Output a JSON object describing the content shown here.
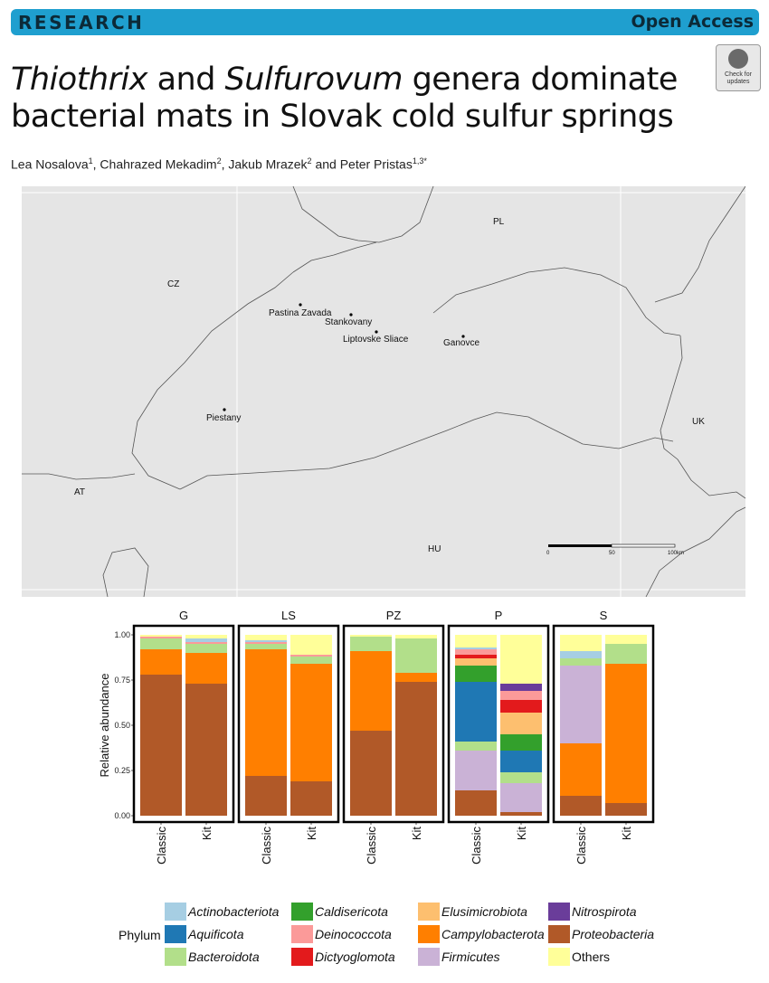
{
  "header": {
    "section_label": "RESEARCH",
    "access_label": "Open Access"
  },
  "paper": {
    "title_italic_1": "Thiothrix",
    "title_and": " and ",
    "title_italic_2": "Sulfurovum",
    "title_rest_1": " genera dominate",
    "title_rest_2": "bacterial mats in Slovak cold sulfur springs",
    "check_updates": "Check for updates",
    "authors": [
      {
        "name": "Lea Nosalova",
        "sup": "1",
        "sep": ", "
      },
      {
        "name": "Chahrazed Mekadim",
        "sup": "2",
        "sep": ", "
      },
      {
        "name": "Jakub Mrazek",
        "sup": "2",
        "sep": " and "
      },
      {
        "name": "Peter Pristas",
        "sup": "1,3*",
        "sep": ""
      }
    ]
  },
  "map": {
    "countries": [
      "PL",
      "CZ",
      "UK",
      "AT",
      "HU"
    ],
    "sites": [
      "Pastina Zavada",
      "Stankovany",
      "Liptovske Sliace",
      "Ganovce",
      "Piestany"
    ],
    "scale_labels": [
      "0",
      "50",
      "100km"
    ]
  },
  "chart_data": {
    "type": "bar",
    "stacked": true,
    "ylabel": "Relative abundance",
    "ylim": [
      0,
      1
    ],
    "yticks": [
      "0.00",
      "0.25",
      "0.50",
      "0.75",
      "1.00"
    ],
    "facets": [
      "G",
      "LS",
      "PZ",
      "P",
      "S"
    ],
    "categories": [
      "Classic",
      "Kit"
    ],
    "legend_title": "Phylum",
    "series": [
      {
        "name": "Proteobacteria",
        "color": "#b15928",
        "values": [
          [
            0.78,
            0.73
          ],
          [
            0.22,
            0.19
          ],
          [
            0.47,
            0.74
          ],
          [
            0.14,
            0.02
          ],
          [
            0.11,
            0.07
          ]
        ]
      },
      {
        "name": "Campylobacterota",
        "color": "#ff7f00",
        "values": [
          [
            0.14,
            0.17
          ],
          [
            0.7,
            0.65
          ],
          [
            0.44,
            0.05
          ],
          [
            0,
            0
          ],
          [
            0.29,
            0.77
          ]
        ]
      },
      {
        "name": "Firmicutes",
        "color": "#cab2d6",
        "values": [
          [
            0,
            0
          ],
          [
            0,
            0
          ],
          [
            0,
            0
          ],
          [
            0.22,
            0.16
          ],
          [
            0.43,
            0
          ]
        ]
      },
      {
        "name": "Bacteroidota",
        "color": "#b2df8a",
        "values": [
          [
            0.06,
            0.05
          ],
          [
            0.03,
            0.04
          ],
          [
            0.08,
            0.19
          ],
          [
            0.05,
            0.06
          ],
          [
            0.04,
            0.11
          ]
        ]
      },
      {
        "name": "Aquificota",
        "color": "#1f78b4",
        "values": [
          [
            0,
            0
          ],
          [
            0,
            0
          ],
          [
            0,
            0
          ],
          [
            0.33,
            0.12
          ],
          [
            0,
            0
          ]
        ]
      },
      {
        "name": "Caldisericota",
        "color": "#33a02c",
        "values": [
          [
            0,
            0
          ],
          [
            0,
            0
          ],
          [
            0,
            0
          ],
          [
            0.09,
            0.09
          ],
          [
            0,
            0
          ]
        ]
      },
      {
        "name": "Elusimicrobiota",
        "color": "#fdbf6f",
        "values": [
          [
            0,
            0
          ],
          [
            0,
            0
          ],
          [
            0,
            0
          ],
          [
            0.04,
            0.12
          ],
          [
            0,
            0
          ]
        ]
      },
      {
        "name": "Dictyoglomota",
        "color": "#e31a1c",
        "values": [
          [
            0,
            0
          ],
          [
            0,
            0
          ],
          [
            0,
            0
          ],
          [
            0.02,
            0.07
          ],
          [
            0,
            0
          ]
        ]
      },
      {
        "name": "Deinococcota",
        "color": "#fb9a99",
        "values": [
          [
            0.01,
            0.01
          ],
          [
            0.01,
            0.01
          ],
          [
            0,
            0
          ],
          [
            0.03,
            0.05
          ],
          [
            0,
            0
          ]
        ]
      },
      {
        "name": "Nitrospirota",
        "color": "#6a3d9a",
        "values": [
          [
            0,
            0
          ],
          [
            0,
            0
          ],
          [
            0,
            0
          ],
          [
            0,
            0.04
          ],
          [
            0,
            0
          ]
        ]
      },
      {
        "name": "Actinobacteriota",
        "color": "#a6cee3",
        "values": [
          [
            0,
            0.02
          ],
          [
            0.01,
            0
          ],
          [
            0,
            0
          ],
          [
            0.01,
            0
          ],
          [
            0.04,
            0
          ]
        ]
      },
      {
        "name": "Others",
        "color": "#ffff99",
        "values": [
          [
            0.01,
            0.02
          ],
          [
            0.03,
            0.11
          ],
          [
            0.01,
            0.02
          ],
          [
            0.07,
            0.27
          ],
          [
            0.09,
            0.05
          ]
        ]
      }
    ]
  },
  "legend": {
    "col1": [
      "Actinobacteriota",
      "Aquificota",
      "Bacteroidota"
    ],
    "col2": [
      "Caldisericota",
      "Deinococcota",
      "Dictyoglomota"
    ],
    "col3": [
      "Elusimicrobiota",
      "Campylobacterota",
      "Firmicutes"
    ],
    "col4": [
      "Nitrospirota",
      "Proteobacteria",
      "Others"
    ]
  }
}
